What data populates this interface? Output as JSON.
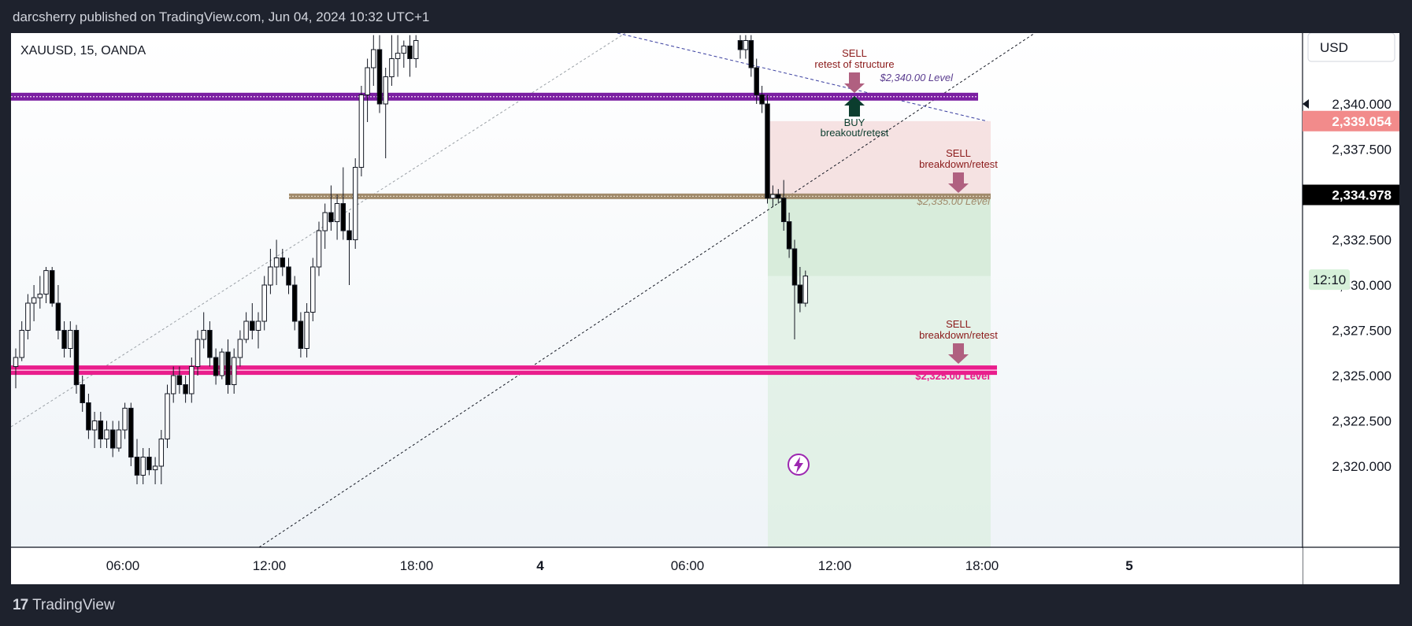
{
  "header": {
    "publisher": "darcsherry published on TradingView.com, Jun 04, 2024 10:32 UTC+1"
  },
  "footer": {
    "brand": "TradingView",
    "logo_icon": "tradingview-logo-icon"
  },
  "symbol": "XAUUSD, 15, OANDA",
  "currency": "USD",
  "colors": {
    "up": "#ffffff",
    "down": "#000000",
    "purple": "#7b1fa2",
    "brown": "#a08a6b",
    "pink": "#e91e8c",
    "sell": "#b06080",
    "buy": "#0b3d2e"
  },
  "price_scale": {
    "ticks": [
      "2,340.000",
      "2,337.500",
      "2,332.500",
      "2,330.000",
      "2,327.500",
      "2,325.000",
      "2,322.500",
      "2,320.000"
    ],
    "labels": [
      {
        "text": "2,339.054",
        "value": 2339.054,
        "bg": "#f28b8b",
        "fg": "#ffffff"
      },
      {
        "text": "2,334.978",
        "value": 2334.978,
        "bg": "#000000",
        "fg": "#ffffff"
      },
      {
        "text": "12:10",
        "value": 2330.3,
        "bg": "#d6f0d9",
        "fg": "#131722"
      }
    ]
  },
  "time_axis": [
    "06:00",
    "12:00",
    "18:00",
    "4",
    "06:00",
    "12:00",
    "18:00",
    "5"
  ],
  "annotations": {
    "sell_structure": [
      "SELL",
      "retest of structure"
    ],
    "buy": [
      "BUY",
      "breakout/retest"
    ],
    "sell_335": [
      "SELL",
      "breakdown/retest"
    ],
    "sell_325": [
      "SELL",
      "breakdown/retest"
    ],
    "level_2340": "$2,340.00 Level",
    "level_2335": "$2,335.00 Level",
    "level_2325": "$2,325.00 Level",
    "lightning_icon": "lightning-icon"
  },
  "chart_data": {
    "type": "candlestick",
    "title": "XAUUSD, 15, OANDA",
    "ylim": [
      2319.0,
      2343.8
    ],
    "y_unit": "USD",
    "x_ticks": [
      "06:00",
      "12:00",
      "18:00",
      "4",
      "06:00",
      "12:00",
      "18:00",
      "5"
    ],
    "horizontal_levels": [
      {
        "label": "$2,340.00 Level",
        "value": 2340.4,
        "color": "#7b1fa2"
      },
      {
        "label": "$2,335.00 Level",
        "value": 2334.9,
        "color": "#a08a6b"
      },
      {
        "label": "$2,325.00 Level",
        "value": 2325.3,
        "color": "#e91e8c"
      }
    ],
    "position_zones": [
      {
        "kind": "stop",
        "from": 2334.9,
        "to": 2339.05,
        "color": "#f2d0d0"
      },
      {
        "kind": "target",
        "from": 2319.0,
        "to": 2334.9,
        "color": "#d6ecd9"
      }
    ],
    "candles": [
      {
        "o": 2325.5,
        "h": 2326.5,
        "l": 2324.3,
        "c": 2326.0
      },
      {
        "o": 2326.0,
        "h": 2328.0,
        "l": 2325.8,
        "c": 2327.5
      },
      {
        "o": 2327.5,
        "h": 2329.5,
        "l": 2327.0,
        "c": 2329.0
      },
      {
        "o": 2329.0,
        "h": 2330.0,
        "l": 2328.0,
        "c": 2329.3
      },
      {
        "o": 2329.3,
        "h": 2330.5,
        "l": 2328.7,
        "c": 2329.5
      },
      {
        "o": 2329.5,
        "h": 2331.0,
        "l": 2329.0,
        "c": 2330.8
      },
      {
        "o": 2330.8,
        "h": 2331.0,
        "l": 2328.8,
        "c": 2329.0
      },
      {
        "o": 2329.0,
        "h": 2330.0,
        "l": 2327.0,
        "c": 2327.5
      },
      {
        "o": 2327.5,
        "h": 2328.0,
        "l": 2326.0,
        "c": 2326.5
      },
      {
        "o": 2326.5,
        "h": 2328.0,
        "l": 2326.0,
        "c": 2327.5
      },
      {
        "o": 2327.5,
        "h": 2327.8,
        "l": 2324.0,
        "c": 2324.5
      },
      {
        "o": 2324.5,
        "h": 2325.0,
        "l": 2323.0,
        "c": 2323.5
      },
      {
        "o": 2323.5,
        "h": 2324.0,
        "l": 2321.5,
        "c": 2322.0
      },
      {
        "o": 2322.0,
        "h": 2323.0,
        "l": 2321.0,
        "c": 2322.5
      },
      {
        "o": 2322.5,
        "h": 2323.0,
        "l": 2321.0,
        "c": 2321.5
      },
      {
        "o": 2321.5,
        "h": 2322.5,
        "l": 2321.0,
        "c": 2322.0
      },
      {
        "o": 2322.0,
        "h": 2322.5,
        "l": 2320.5,
        "c": 2321.0
      },
      {
        "o": 2321.0,
        "h": 2322.5,
        "l": 2320.8,
        "c": 2322.0
      },
      {
        "o": 2322.0,
        "h": 2323.5,
        "l": 2321.5,
        "c": 2323.2
      },
      {
        "o": 2323.2,
        "h": 2323.5,
        "l": 2320.0,
        "c": 2320.5
      },
      {
        "o": 2320.5,
        "h": 2321.5,
        "l": 2319.0,
        "c": 2319.5
      },
      {
        "o": 2319.5,
        "h": 2321.0,
        "l": 2319.0,
        "c": 2320.5
      },
      {
        "o": 2320.5,
        "h": 2321.0,
        "l": 2319.5,
        "c": 2319.8
      },
      {
        "o": 2319.8,
        "h": 2320.5,
        "l": 2319.0,
        "c": 2320.0
      },
      {
        "o": 2320.0,
        "h": 2322.0,
        "l": 2319.0,
        "c": 2321.5
      },
      {
        "o": 2321.5,
        "h": 2324.5,
        "l": 2321.0,
        "c": 2324.0
      },
      {
        "o": 2324.0,
        "h": 2325.5,
        "l": 2323.5,
        "c": 2325.0
      },
      {
        "o": 2325.0,
        "h": 2325.5,
        "l": 2324.0,
        "c": 2324.5
      },
      {
        "o": 2324.5,
        "h": 2325.0,
        "l": 2323.5,
        "c": 2324.0
      },
      {
        "o": 2324.0,
        "h": 2326.0,
        "l": 2323.5,
        "c": 2325.5
      },
      {
        "o": 2325.5,
        "h": 2327.5,
        "l": 2325.0,
        "c": 2327.0
      },
      {
        "o": 2327.0,
        "h": 2328.5,
        "l": 2326.5,
        "c": 2327.5
      },
      {
        "o": 2327.5,
        "h": 2328.0,
        "l": 2325.5,
        "c": 2326.0
      },
      {
        "o": 2326.0,
        "h": 2326.5,
        "l": 2324.5,
        "c": 2325.0
      },
      {
        "o": 2325.0,
        "h": 2326.5,
        "l": 2324.8,
        "c": 2326.3
      },
      {
        "o": 2326.3,
        "h": 2327.0,
        "l": 2324.0,
        "c": 2324.5
      },
      {
        "o": 2324.5,
        "h": 2326.5,
        "l": 2324.0,
        "c": 2326.0
      },
      {
        "o": 2326.0,
        "h": 2327.5,
        "l": 2325.5,
        "c": 2327.0
      },
      {
        "o": 2327.0,
        "h": 2328.5,
        "l": 2326.8,
        "c": 2328.0
      },
      {
        "o": 2328.0,
        "h": 2329.0,
        "l": 2327.0,
        "c": 2327.5
      },
      {
        "o": 2327.5,
        "h": 2328.5,
        "l": 2326.5,
        "c": 2328.0
      },
      {
        "o": 2328.0,
        "h": 2330.5,
        "l": 2327.5,
        "c": 2330.0
      },
      {
        "o": 2330.0,
        "h": 2332.0,
        "l": 2329.5,
        "c": 2331.0
      },
      {
        "o": 2331.0,
        "h": 2332.5,
        "l": 2330.0,
        "c": 2331.5
      },
      {
        "o": 2331.5,
        "h": 2332.0,
        "l": 2330.5,
        "c": 2331.0
      },
      {
        "o": 2331.0,
        "h": 2331.5,
        "l": 2329.5,
        "c": 2330.0
      },
      {
        "o": 2330.0,
        "h": 2330.5,
        "l": 2327.5,
        "c": 2328.0
      },
      {
        "o": 2328.0,
        "h": 2328.5,
        "l": 2326.0,
        "c": 2326.5
      },
      {
        "o": 2326.5,
        "h": 2329.0,
        "l": 2326.0,
        "c": 2328.5
      },
      {
        "o": 2328.5,
        "h": 2331.5,
        "l": 2328.0,
        "c": 2331.0
      },
      {
        "o": 2331.0,
        "h": 2333.5,
        "l": 2330.5,
        "c": 2333.0
      },
      {
        "o": 2333.0,
        "h": 2334.5,
        "l": 2332.0,
        "c": 2334.0
      },
      {
        "o": 2334.0,
        "h": 2335.5,
        "l": 2333.0,
        "c": 2333.5
      },
      {
        "o": 2333.5,
        "h": 2335.0,
        "l": 2332.5,
        "c": 2334.5
      },
      {
        "o": 2334.5,
        "h": 2336.5,
        "l": 2332.5,
        "c": 2333.0
      },
      {
        "o": 2333.0,
        "h": 2334.0,
        "l": 2330.0,
        "c": 2332.5
      },
      {
        "o": 2332.5,
        "h": 2337.0,
        "l": 2332.0,
        "c": 2336.5
      },
      {
        "o": 2336.5,
        "h": 2341.0,
        "l": 2336.0,
        "c": 2340.5
      },
      {
        "o": 2340.5,
        "h": 2342.5,
        "l": 2339.0,
        "c": 2342.0
      },
      {
        "o": 2342.0,
        "h": 2343.8,
        "l": 2341.0,
        "c": 2343.0
      },
      {
        "o": 2343.0,
        "h": 2343.8,
        "l": 2339.5,
        "c": 2340.0
      },
      {
        "o": 2340.0,
        "h": 2342.0,
        "l": 2337.0,
        "c": 2341.5
      },
      {
        "o": 2341.5,
        "h": 2343.8,
        "l": 2341.0,
        "c": 2342.5
      },
      {
        "o": 2342.5,
        "h": 2343.8,
        "l": 2341.5,
        "c": 2342.8
      },
      {
        "o": 2342.8,
        "h": 2343.5,
        "l": 2342.0,
        "c": 2343.2
      },
      {
        "o": 2343.2,
        "h": 2343.8,
        "l": 2341.5,
        "c": 2342.5
      },
      {
        "o": 2342.5,
        "h": 2343.8,
        "l": 2342.0,
        "c": 2343.5
      }
    ],
    "candles_session2": [
      {
        "o": 2343.5,
        "h": 2343.8,
        "l": 2342.5,
        "c": 2343.0
      },
      {
        "o": 2343.0,
        "h": 2343.8,
        "l": 2342.5,
        "c": 2343.5
      },
      {
        "o": 2343.5,
        "h": 2343.8,
        "l": 2341.5,
        "c": 2342.0
      },
      {
        "o": 2342.0,
        "h": 2342.5,
        "l": 2340.0,
        "c": 2340.5
      },
      {
        "o": 2340.5,
        "h": 2341.0,
        "l": 2339.5,
        "c": 2340.0
      },
      {
        "o": 2340.0,
        "h": 2340.5,
        "l": 2334.5,
        "c": 2334.8
      },
      {
        "o": 2334.8,
        "h": 2335.5,
        "l": 2334.3,
        "c": 2335.0
      },
      {
        "o": 2335.0,
        "h": 2335.3,
        "l": 2334.5,
        "c": 2334.8
      },
      {
        "o": 2334.8,
        "h": 2335.8,
        "l": 2333.0,
        "c": 2333.5
      },
      {
        "o": 2333.5,
        "h": 2334.0,
        "l": 2331.5,
        "c": 2332.0
      },
      {
        "o": 2332.0,
        "h": 2332.5,
        "l": 2327.0,
        "c": 2330.0
      },
      {
        "o": 2330.0,
        "h": 2331.0,
        "l": 2328.5,
        "c": 2329.0
      },
      {
        "o": 2329.0,
        "h": 2330.8,
        "l": 2328.8,
        "c": 2330.5
      }
    ]
  }
}
